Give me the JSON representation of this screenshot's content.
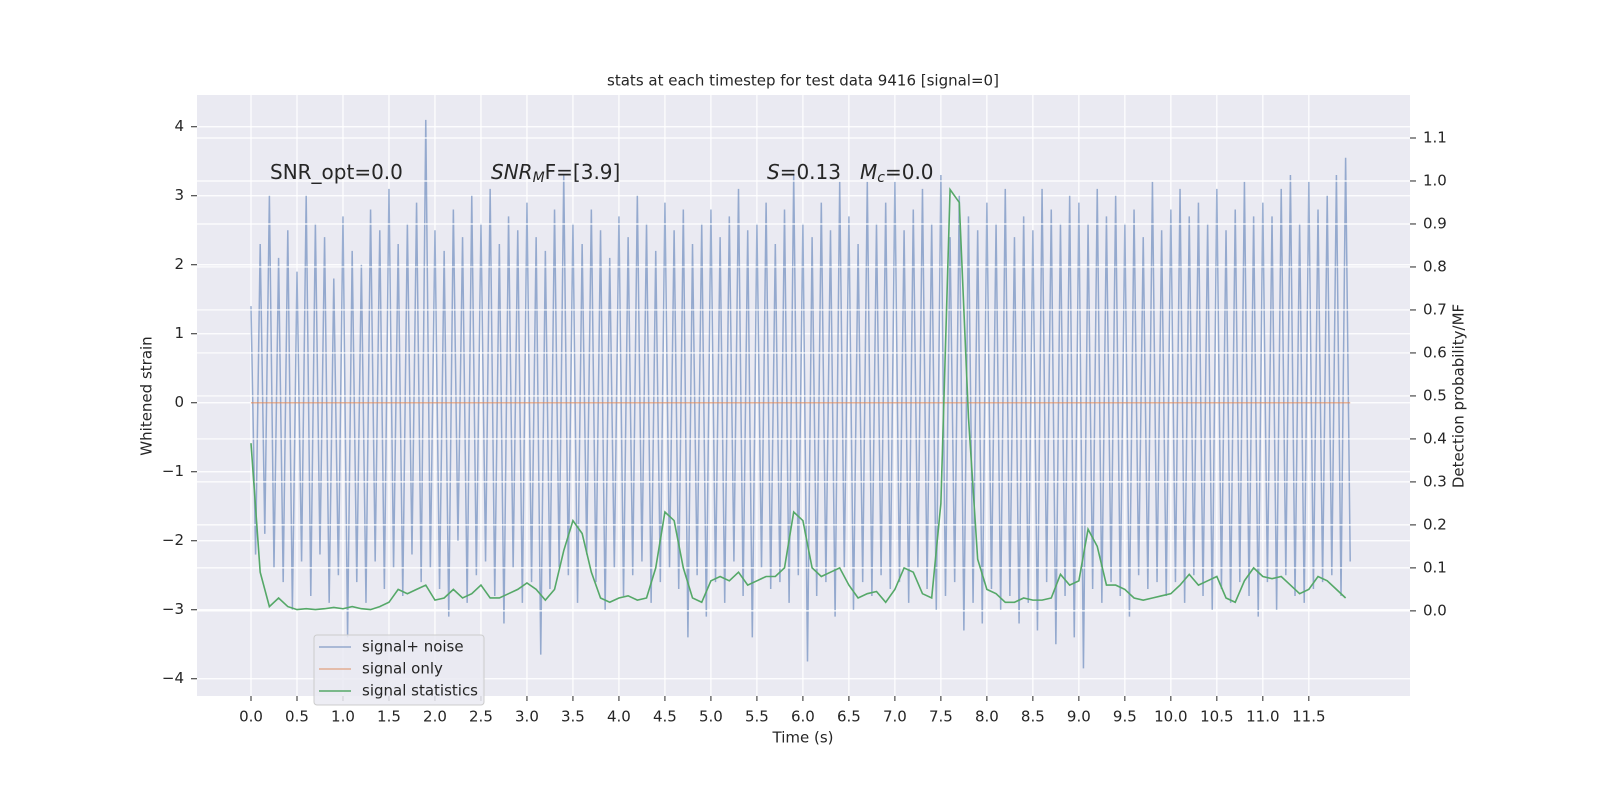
{
  "chart_data": {
    "type": "line",
    "title": "stats at each timestep for test data 9416 [signal=0]",
    "xlabel": "Time (s)",
    "ylabel": "Whitened strain",
    "y2label": "Detection probability/MF",
    "annotations": [
      {
        "base": "SNR_opt=0.0"
      },
      {
        "base": "SNR",
        "sub": "M",
        "rest": "F=[3.9]"
      },
      {
        "base": "S",
        "rest": "=0.13"
      },
      {
        "base": "M",
        "sub": "c",
        "rest": "=0.0"
      }
    ],
    "xlim": [
      -0.587,
      12.6
    ],
    "ylim": [
      -4.25,
      4.46
    ],
    "y2lim": [
      -0.198,
      1.2
    ],
    "xticks": [
      {
        "value": 0,
        "label": "0.0"
      },
      0.5,
      {
        "value": 1,
        "label": "1.0"
      },
      1.5,
      {
        "value": 2,
        "label": "2.0"
      },
      2.5,
      {
        "value": 3,
        "label": "3.0"
      },
      3.5,
      {
        "value": 4,
        "label": "4.0"
      },
      4.5,
      {
        "value": 5,
        "label": "5.0"
      },
      5.5,
      {
        "value": 6,
        "label": "6.0"
      },
      6.5,
      {
        "value": 7,
        "label": "7.0"
      },
      7.5,
      {
        "value": 8,
        "label": "8.0"
      },
      8.5,
      {
        "value": 9,
        "label": "9.0"
      },
      9.5,
      {
        "value": 10,
        "label": "10.0"
      },
      10.5,
      {
        "value": 11,
        "label": "11.0"
      },
      11.5
    ],
    "yticks": [
      {
        "value": -4,
        "label": "−4"
      },
      {
        "value": -3,
        "label": "−3"
      },
      {
        "value": -2,
        "label": "−2"
      },
      {
        "value": -1,
        "label": "−1"
      },
      0,
      1,
      2,
      3,
      4
    ],
    "y2ticks": [
      {
        "value": 0,
        "label": "0.0"
      },
      0.1,
      0.2,
      0.3,
      0.4,
      0.5,
      0.6,
      0.7,
      0.8,
      0.9,
      {
        "value": 1,
        "label": "1.0"
      },
      1.1
    ],
    "grid": true,
    "legend": "lower left",
    "series": [
      {
        "name": "signal+ noise",
        "color": "#4c72b0",
        "x": [
          0,
          0.05,
          0.1,
          0.15,
          0.2,
          0.25,
          0.3,
          0.35,
          0.4,
          0.45,
          0.5,
          0.55,
          0.6,
          0.65,
          0.7,
          0.75,
          0.8,
          0.85,
          0.9,
          0.95,
          1,
          1.05,
          1.1,
          1.15,
          1.2,
          1.25,
          1.3,
          1.35,
          1.4,
          1.45,
          1.5,
          1.55,
          1.6,
          1.65,
          1.7,
          1.75,
          1.8,
          1.85,
          1.9,
          1.95,
          2,
          2.05,
          2.1,
          2.15,
          2.2,
          2.25,
          2.3,
          2.35,
          2.4,
          2.45,
          2.5,
          2.55,
          2.6,
          2.65,
          2.7,
          2.75,
          2.8,
          2.85,
          2.9,
          2.95,
          3,
          3.05,
          3.1,
          3.15,
          3.2,
          3.25,
          3.3,
          3.35,
          3.4,
          3.45,
          3.5,
          3.55,
          3.6,
          3.65,
          3.7,
          3.75,
          3.8,
          3.85,
          3.9,
          3.95,
          4,
          4.05,
          4.1,
          4.15,
          4.2,
          4.25,
          4.3,
          4.35,
          4.4,
          4.45,
          4.5,
          4.55,
          4.6,
          4.65,
          4.7,
          4.75,
          4.8,
          4.85,
          4.9,
          4.95,
          5,
          5.05,
          5.1,
          5.15,
          5.2,
          5.25,
          5.3,
          5.35,
          5.4,
          5.45,
          5.5,
          5.55,
          5.6,
          5.65,
          5.7,
          5.75,
          5.8,
          5.85,
          5.9,
          5.95,
          6,
          6.05,
          6.1,
          6.15,
          6.2,
          6.25,
          6.3,
          6.35,
          6.4,
          6.45,
          6.5,
          6.55,
          6.6,
          6.65,
          6.7,
          6.75,
          6.8,
          6.85,
          6.9,
          6.95,
          7,
          7.05,
          7.1,
          7.15,
          7.2,
          7.25,
          7.3,
          7.35,
          7.4,
          7.45,
          7.5,
          7.55,
          7.6,
          7.65,
          7.7,
          7.75,
          7.8,
          7.85,
          7.9,
          7.95,
          8,
          8.05,
          8.1,
          8.15,
          8.2,
          8.25,
          8.3,
          8.35,
          8.4,
          8.45,
          8.5,
          8.55,
          8.6,
          8.65,
          8.7,
          8.75,
          8.8,
          8.85,
          8.9,
          8.95,
          9,
          9.05,
          9.1,
          9.15,
          9.2,
          9.25,
          9.3,
          9.35,
          9.4,
          9.45,
          9.5,
          9.55,
          9.6,
          9.65,
          9.7,
          9.75,
          9.8,
          9.85,
          9.9,
          9.95,
          10,
          10.05,
          10.1,
          10.15,
          10.2,
          10.25,
          10.3,
          10.35,
          10.4,
          10.45,
          10.5,
          10.55,
          10.6,
          10.65,
          10.7,
          10.75,
          10.8,
          10.85,
          10.9,
          10.95,
          11,
          11.05,
          11.1,
          11.15,
          11.2,
          11.25,
          11.3,
          11.35,
          11.4,
          11.45,
          11.5,
          11.55,
          11.6,
          11.65,
          11.7,
          11.75,
          11.8,
          11.85,
          11.9,
          11.95
        ],
        "values": [
          1.4,
          -2.2,
          2.3,
          -1.9,
          3.0,
          -2.4,
          2.1,
          -2.6,
          2.5,
          -3.0,
          1.9,
          -2.3,
          3.0,
          -2.8,
          2.6,
          -2.2,
          2.4,
          -2.9,
          1.8,
          -2.5,
          2.7,
          -3.4,
          2.2,
          -2.6,
          2.0,
          -2.9,
          2.8,
          -2.3,
          2.5,
          -2.7,
          3.1,
          -2.4,
          2.3,
          -2.8,
          2.6,
          -2.2,
          2.9,
          -2.6,
          4.1,
          -2.4,
          2.5,
          -2.7,
          2.2,
          -3.1,
          2.8,
          -2.0,
          2.4,
          -2.9,
          3.0,
          -2.5,
          2.6,
          -2.3,
          3.1,
          -2.8,
          2.3,
          -3.2,
          2.7,
          -2.4,
          2.5,
          -2.9,
          2.9,
          -2.6,
          2.4,
          -3.65,
          2.2,
          -2.7,
          2.8,
          -2.4,
          3.3,
          -2.5,
          2.6,
          -2.9,
          2.3,
          -2.2,
          2.8,
          -2.6,
          2.5,
          -3.0,
          2.1,
          -2.4,
          2.7,
          -2.8,
          2.4,
          -2.5,
          3.0,
          -2.3,
          2.6,
          -2.9,
          2.2,
          -2.6,
          2.9,
          -2.4,
          2.5,
          -2.7,
          2.8,
          -3.4,
          2.3,
          -2.5,
          2.6,
          -3.1,
          2.8,
          -2.6,
          2.4,
          -2.9,
          2.7,
          -2.3,
          3.1,
          -2.8,
          2.5,
          -3.4,
          2.6,
          -2.4,
          2.9,
          -2.7,
          2.3,
          -2.6,
          2.8,
          -2.9,
          3.3,
          -2.5,
          2.6,
          -3.75,
          2.4,
          -2.8,
          2.9,
          -2.6,
          2.5,
          -3.1,
          3.2,
          -2.4,
          2.7,
          -3.0,
          2.3,
          -2.6,
          3.2,
          -2.8,
          2.6,
          -2.5,
          2.9,
          -2.7,
          3.2,
          -2.6,
          2.5,
          -2.9,
          2.8,
          -2.4,
          3.1,
          -2.7,
          2.6,
          -3.0,
          3.3,
          -2.8,
          2.4,
          -2.6,
          3.0,
          -3.3,
          2.7,
          -2.9,
          2.5,
          -3.2,
          2.9,
          -2.7,
          2.6,
          -3.0,
          3.1,
          -2.8,
          2.4,
          -3.2,
          2.7,
          -2.9,
          2.5,
          -3.3,
          3.1,
          -2.6,
          2.8,
          -3.5,
          2.6,
          -2.8,
          3.0,
          -3.4,
          2.9,
          -3.85,
          2.6,
          -2.7,
          3.1,
          -2.9,
          2.7,
          -2.6,
          3.0,
          -2.8,
          2.6,
          -3.1,
          2.8,
          -2.5,
          2.4,
          -2.7,
          3.2,
          -2.6,
          2.5,
          -2.8,
          2.8,
          -2.6,
          3.1,
          -2.9,
          2.7,
          -2.5,
          2.9,
          -2.8,
          2.6,
          -3.0,
          3.1,
          -2.7,
          2.5,
          -2.9,
          2.8,
          -2.6,
          3.2,
          -2.8,
          2.7,
          -3.1,
          2.9,
          -2.6,
          2.7,
          -3.0,
          3.1,
          -2.5,
          3.3,
          -2.8,
          2.6,
          -2.9,
          3.2,
          -2.7,
          2.8,
          -2.6,
          3.0,
          -2.5,
          3.3,
          -2.8,
          3.55,
          -2.3
        ]
      },
      {
        "name": "signal only",
        "color": "#dd8452",
        "x": [
          0,
          11.95
        ],
        "values": [
          0,
          0
        ]
      },
      {
        "name": "signal statistics",
        "color": "#55a868",
        "axis": "y2",
        "x": [
          0,
          0.1,
          0.2,
          0.3,
          0.4,
          0.5,
          0.6,
          0.7,
          0.8,
          0.9,
          1,
          1.1,
          1.2,
          1.3,
          1.4,
          1.5,
          1.6,
          1.7,
          1.8,
          1.9,
          2,
          2.1,
          2.2,
          2.3,
          2.4,
          2.5,
          2.6,
          2.7,
          2.8,
          2.9,
          3,
          3.1,
          3.2,
          3.3,
          3.4,
          3.5,
          3.6,
          3.7,
          3.8,
          3.9,
          4,
          4.1,
          4.2,
          4.3,
          4.4,
          4.5,
          4.6,
          4.7,
          4.8,
          4.9,
          5,
          5.1,
          5.2,
          5.3,
          5.4,
          5.5,
          5.6,
          5.7,
          5.8,
          5.9,
          6,
          6.1,
          6.2,
          6.3,
          6.4,
          6.5,
          6.6,
          6.7,
          6.8,
          6.9,
          7,
          7.1,
          7.2,
          7.3,
          7.4,
          7.5,
          7.6,
          7.7,
          7.8,
          7.9,
          8,
          8.1,
          8.2,
          8.3,
          8.4,
          8.5,
          8.6,
          8.7,
          8.8,
          8.9,
          9,
          9.1,
          9.2,
          9.3,
          9.4,
          9.5,
          9.6,
          9.7,
          9.8,
          9.9,
          10,
          10.1,
          10.2,
          10.3,
          10.4,
          10.5,
          10.6,
          10.7,
          10.8,
          10.9,
          11,
          11.1,
          11.2,
          11.3,
          11.4,
          11.5,
          11.6,
          11.7,
          11.8,
          11.9
        ],
        "values": [
          0.39,
          0.09,
          0.01,
          0.03,
          0.01,
          0.003,
          0.005,
          0.003,
          0.005,
          0.008,
          0.005,
          0.01,
          0.005,
          0.003,
          0.01,
          0.02,
          0.05,
          0.04,
          0.05,
          0.06,
          0.025,
          0.03,
          0.05,
          0.03,
          0.04,
          0.06,
          0.03,
          0.03,
          0.04,
          0.05,
          0.065,
          0.05,
          0.025,
          0.05,
          0.14,
          0.21,
          0.18,
          0.09,
          0.03,
          0.02,
          0.03,
          0.035,
          0.025,
          0.03,
          0.1,
          0.23,
          0.21,
          0.1,
          0.03,
          0.02,
          0.07,
          0.08,
          0.07,
          0.09,
          0.06,
          0.07,
          0.08,
          0.08,
          0.1,
          0.23,
          0.21,
          0.1,
          0.08,
          0.09,
          0.1,
          0.06,
          0.03,
          0.04,
          0.045,
          0.02,
          0.05,
          0.1,
          0.09,
          0.04,
          0.03,
          0.25,
          0.98,
          0.95,
          0.45,
          0.12,
          0.05,
          0.04,
          0.02,
          0.02,
          0.03,
          0.025,
          0.025,
          0.03,
          0.085,
          0.06,
          0.07,
          0.19,
          0.15,
          0.06,
          0.06,
          0.05,
          0.03,
          0.025,
          0.03,
          0.035,
          0.04,
          0.06,
          0.085,
          0.06,
          0.07,
          0.08,
          0.03,
          0.02,
          0.07,
          0.1,
          0.08,
          0.075,
          0.08,
          0.06,
          0.04,
          0.05,
          0.08,
          0.07,
          0.05,
          0.03
        ]
      }
    ]
  }
}
